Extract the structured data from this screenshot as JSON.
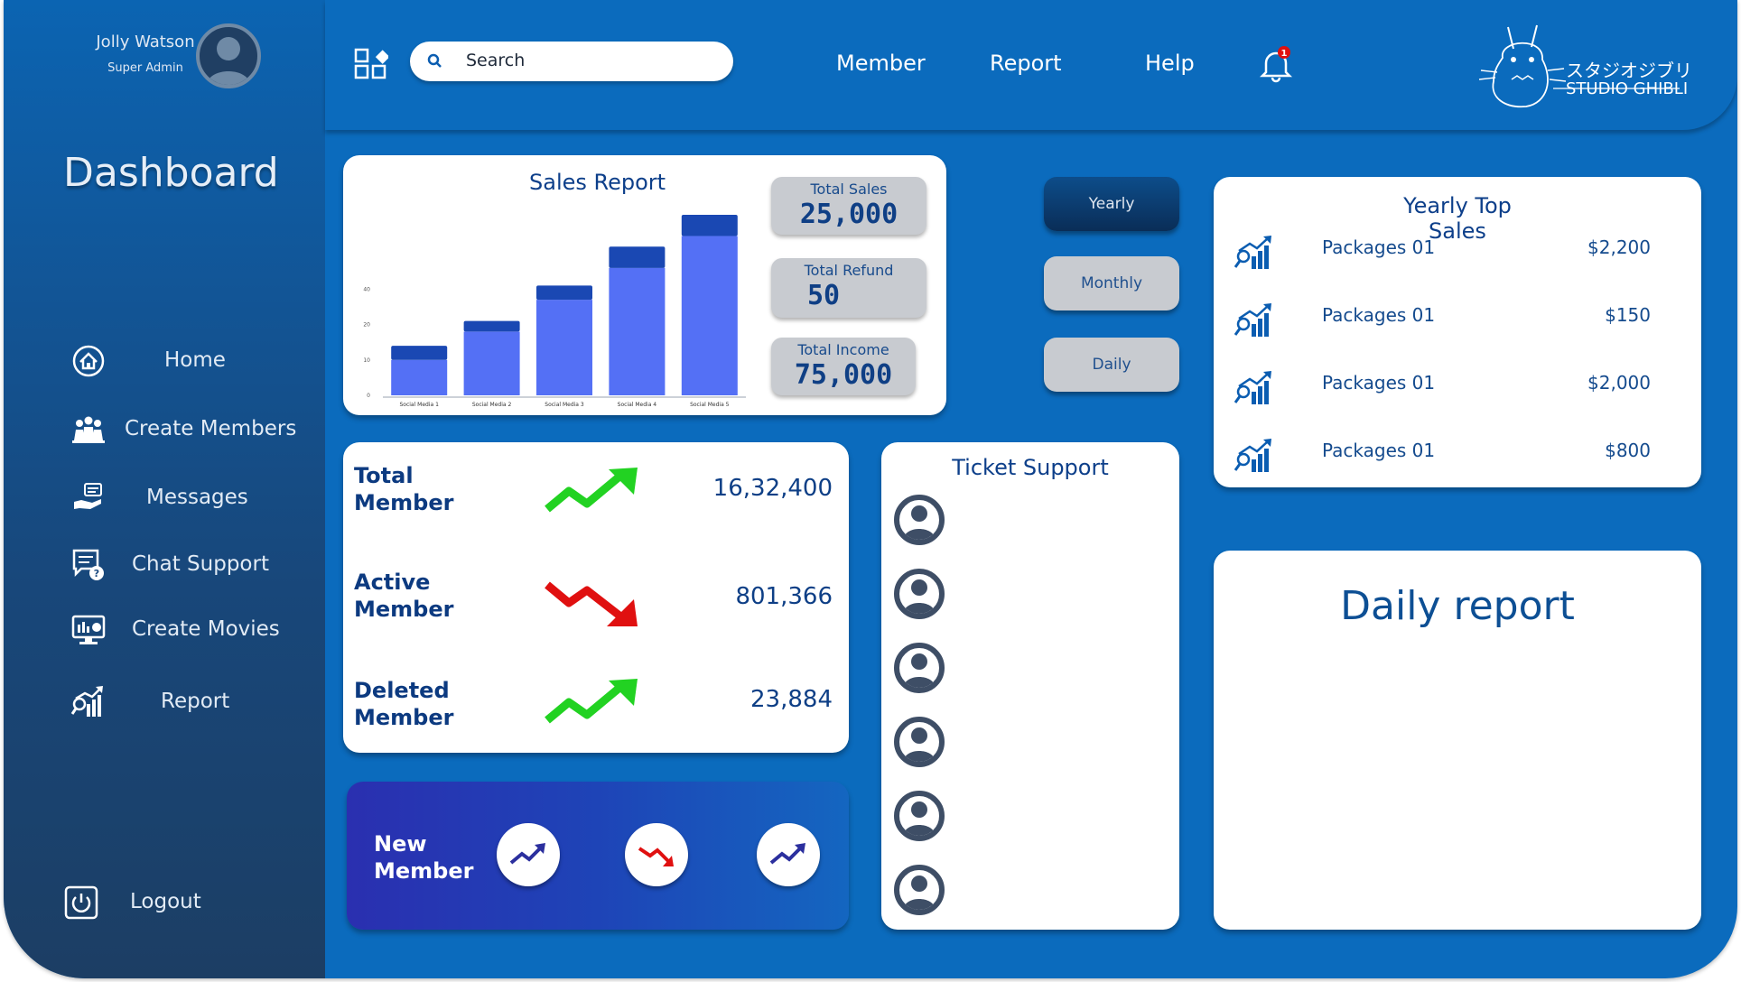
{
  "user": {
    "name": "Jolly Watson",
    "role": "Super Admin"
  },
  "sidebar": {
    "title": "Dashboard",
    "items": [
      {
        "label": "Home",
        "icon": "home-icon"
      },
      {
        "label": "Create Members",
        "icon": "members-icon"
      },
      {
        "label": "Messages",
        "icon": "messages-icon"
      },
      {
        "label": "Chat Support",
        "icon": "chat-support-icon"
      },
      {
        "label": "Create Movies",
        "icon": "movie-icon"
      },
      {
        "label": "Report",
        "icon": "report-icon"
      }
    ],
    "logout": "Logout"
  },
  "topbar": {
    "search_placeholder": "Search",
    "links": [
      "Member",
      "Report",
      "Help"
    ],
    "notification_count": "1",
    "logo_jp": "スタジオジブリ",
    "logo_en": "STUDIO GHIBLI"
  },
  "sales_report": {
    "title": "Sales Report",
    "stats": [
      {
        "label": "Total Sales",
        "value": "25,000"
      },
      {
        "label": "Total Refund",
        "value": "50"
      },
      {
        "label": "Total Income",
        "value": "75,000"
      }
    ]
  },
  "chart_data": {
    "type": "bar",
    "categories": [
      "Social Media 1",
      "Social Media 2",
      "Social Media 3",
      "Social Media 4",
      "Social Media 5"
    ],
    "series": [
      {
        "values": [
          10,
          18,
          27,
          36,
          45
        ]
      },
      {
        "values": [
          4,
          3,
          4,
          6,
          6
        ]
      }
    ],
    "yticks": [
      "0",
      "10",
      "20",
      "40"
    ],
    "ylim": [
      0,
      51
    ],
    "colors": [
      "#5470f5",
      "#1a48b3"
    ]
  },
  "periods": {
    "options": [
      "Yearly",
      "Monthly",
      "Daily"
    ],
    "selected": "Yearly"
  },
  "members": [
    {
      "label_line1": "Total",
      "label_line2": "Member",
      "value": "16,32,400",
      "trend": "up"
    },
    {
      "label_line1": "Active",
      "label_line2": "Member",
      "value": "801,366",
      "trend": "down"
    },
    {
      "label_line1": "Deleted",
      "label_line2": "Member",
      "value": "23,884",
      "trend": "up"
    }
  ],
  "new_member": {
    "label_line1": "New",
    "label_line2": "Member",
    "trends": [
      "up",
      "down",
      "up"
    ]
  },
  "ticket_support": {
    "title": "Ticket Support",
    "avatars": 6
  },
  "yearly_top_sales": {
    "title_line1": "Yearly Top",
    "title_line2": "Sales",
    "items": [
      {
        "name": "Packages 01",
        "value": "$2,200"
      },
      {
        "name": "Packages 01",
        "value": "$150"
      },
      {
        "name": "Packages 01",
        "value": "$2,000"
      },
      {
        "name": "Packages 01",
        "value": "$800"
      }
    ]
  },
  "daily_report": {
    "title": "Daily report"
  },
  "colors": {
    "primary": "#0b6bbd",
    "trend_up": "#22d222",
    "trend_down": "#e01010",
    "text_dark": "#0d3f8a"
  }
}
